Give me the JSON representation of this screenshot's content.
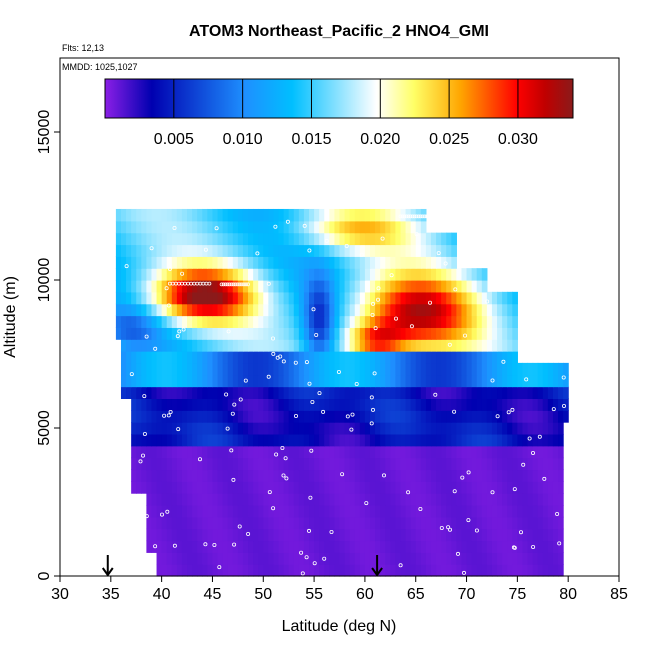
{
  "chart_data": {
    "type": "heatmap",
    "title": "ATOM3 Northeast_Pacific_2 HNO4_GMI",
    "annotations": [
      "Flts: 12,13",
      "MMDD: 1025,1027"
    ],
    "xlabel": "Latitude (deg N)",
    "ylabel": "Altitude (m)",
    "xlim": [
      30,
      85
    ],
    "ylim": [
      0,
      17500
    ],
    "x_ticks": [
      "30",
      "35",
      "40",
      "45",
      "50",
      "55",
      "60",
      "65",
      "70",
      "75",
      "80",
      "85"
    ],
    "y_ticks": [
      "0",
      "5000",
      "10000",
      "15000"
    ],
    "colorbar": {
      "range": [
        0,
        0.034
      ],
      "ticks": [
        "0.005",
        "0.010",
        "0.015",
        "0.020",
        "0.025",
        "0.030"
      ],
      "colors": [
        "#8b1fe6",
        "#0000b0",
        "#1e90ff",
        "#00bfff",
        "#ffffff",
        "#ffff66",
        "#ffa500",
        "#ff0000",
        "#c00000",
        "#8b1a1a"
      ]
    },
    "arrows": [
      {
        "x": 34.7,
        "y": 0
      },
      {
        "x": 61.2,
        "y": 0
      }
    ],
    "grid": false,
    "legend": "top"
  }
}
